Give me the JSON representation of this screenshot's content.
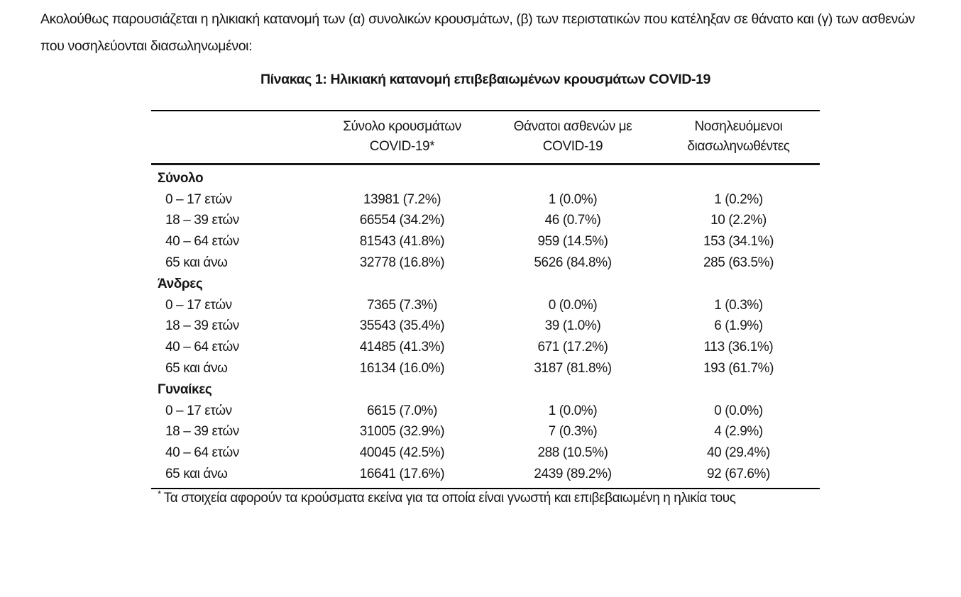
{
  "colors": {
    "text": "#161616",
    "rule": "#000000",
    "background": "#ffffff"
  },
  "document": {
    "intro": "Ακολούθως παρουσιάζεται η ηλικιακή κατανομή των (α) συνολικών κρουσμάτων, (β) των περιστατικών που κατέληξαν σε θάνατο και (γ) των ασθενών που νοσηλεύονται διασωληνωμένοι:",
    "table": {
      "title": "Πίνακας 1: Ηλικιακή κατανομή επιβεβαιωμένων κρουσμάτων COVID-19",
      "columns": [
        {
          "line1": "Σύνολο κρουσμάτων",
          "line2": "COVID-19*"
        },
        {
          "line1": "Θάνατοι ασθενών με",
          "line2": "COVID-19"
        },
        {
          "line1": "Νοσηλευόμενοι",
          "line2": "διασωληνωθέντες"
        }
      ],
      "sections": [
        {
          "label": "Σύνολο",
          "rows": [
            {
              "age": "0 – 17 ετών",
              "total_cases": "13981 (7.2%)",
              "deaths": "1 (0.0%)",
              "intubated": "1 (0.2%)"
            },
            {
              "age": "18 – 39 ετών",
              "total_cases": "66554 (34.2%)",
              "deaths": "46 (0.7%)",
              "intubated": "10 (2.2%)"
            },
            {
              "age": "40 – 64 ετών",
              "total_cases": "81543 (41.8%)",
              "deaths": "959 (14.5%)",
              "intubated": "153 (34.1%)"
            },
            {
              "age": "65 και άνω",
              "total_cases": "32778 (16.8%)",
              "deaths": "5626 (84.8%)",
              "intubated": "285 (63.5%)"
            }
          ]
        },
        {
          "label": "Άνδρες",
          "rows": [
            {
              "age": "0 – 17 ετών",
              "total_cases": "7365 (7.3%)",
              "deaths": "0 (0.0%)",
              "intubated": "1 (0.3%)"
            },
            {
              "age": "18 – 39 ετών",
              "total_cases": "35543 (35.4%)",
              "deaths": "39 (1.0%)",
              "intubated": "6 (1.9%)"
            },
            {
              "age": "40 – 64 ετών",
              "total_cases": "41485 (41.3%)",
              "deaths": "671 (17.2%)",
              "intubated": "113 (36.1%)"
            },
            {
              "age": "65 και άνω",
              "total_cases": "16134 (16.0%)",
              "deaths": "3187 (81.8%)",
              "intubated": "193 (61.7%)"
            }
          ]
        },
        {
          "label": "Γυναίκες",
          "rows": [
            {
              "age": "0 – 17 ετών",
              "total_cases": "6615 (7.0%)",
              "deaths": "1 (0.0%)",
              "intubated": "0 (0.0%)"
            },
            {
              "age": "18 – 39 ετών",
              "total_cases": "31005 (32.9%)",
              "deaths": "7 (0.3%)",
              "intubated": "4 (2.9%)"
            },
            {
              "age": "40 – 64 ετών",
              "total_cases": "40045 (42.5%)",
              "deaths": "288 (10.5%)",
              "intubated": "40 (29.4%)"
            },
            {
              "age": "65 και άνω",
              "total_cases": "16641 (17.6%)",
              "deaths": "2439 (89.2%)",
              "intubated": "92 (67.6%)"
            }
          ]
        }
      ],
      "footnote_marker": "*",
      "footnote": "Τα στοιχεία αφορούν τα κρούσματα εκείνα για τα οποία είναι γνωστή και επιβεβαιωμένη η ηλικία τους"
    }
  }
}
